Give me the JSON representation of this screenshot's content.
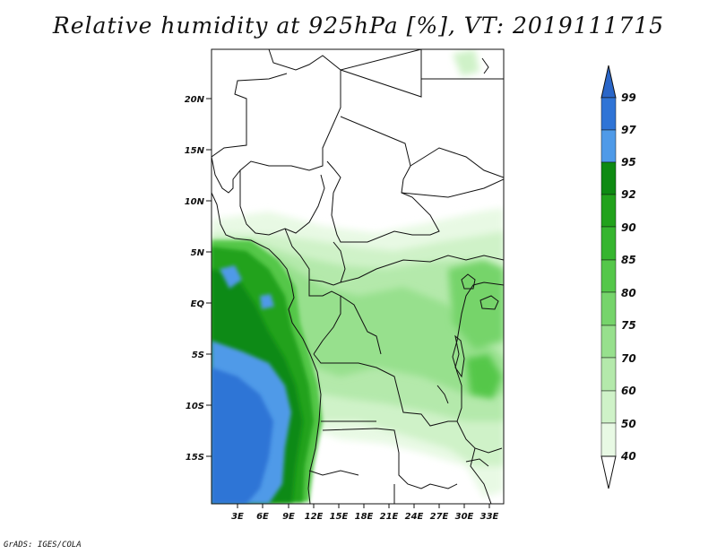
{
  "title": "Relative humidity at 925hPa [%], VT: 2019111715",
  "credit": "GrADS: IGES/COLA",
  "map": {
    "lat_labels": [
      "20N",
      "15N",
      "10N",
      "5N",
      "EQ",
      "5S",
      "10S",
      "15S"
    ],
    "lon_labels": [
      "3E",
      "6E",
      "9E",
      "12E",
      "15E",
      "18E",
      "21E",
      "24E",
      "27E",
      "30E",
      "33E"
    ]
  },
  "colorbar": {
    "levels": [
      "99",
      "97",
      "95",
      "92",
      "90",
      "85",
      "80",
      "75",
      "70",
      "60",
      "50",
      "40"
    ],
    "colors": {
      "top_triangle": "#2a66c8",
      "band_97_99": "#2f74d6",
      "band_95_97": "#4f9ae8",
      "band_92_95": "#0e8a12",
      "band_90_92": "#22a21c",
      "band_85_90": "#36b52f",
      "band_80_85": "#55c74a",
      "band_75_80": "#76d46b",
      "band_70_75": "#97e08d",
      "band_60_70": "#b4e9ab",
      "band_50_60": "#cff2c8",
      "band_40_50": "#e8f9e4",
      "bottom_triangle": "#ffffff"
    }
  }
}
